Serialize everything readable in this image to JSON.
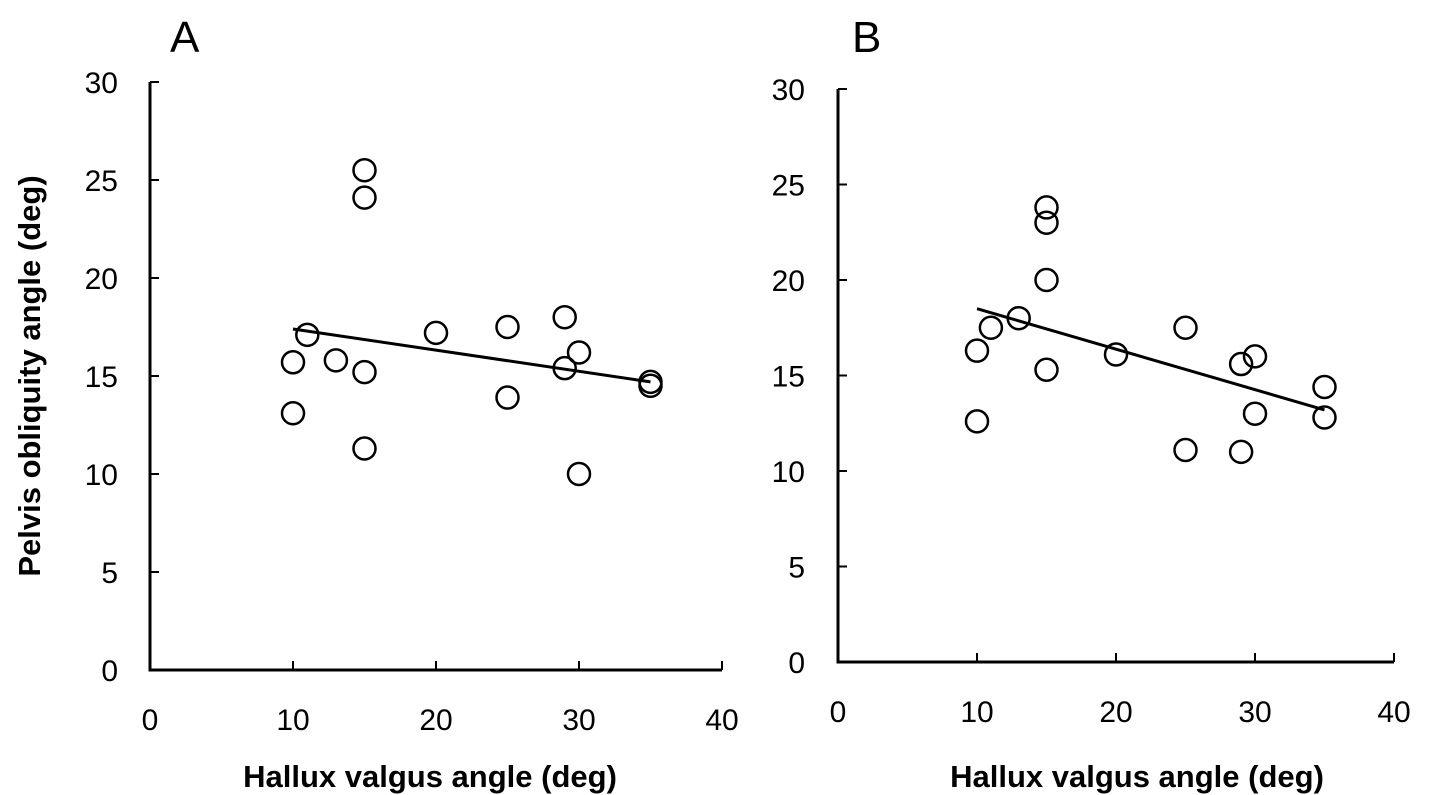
{
  "figure": {
    "ylabel": "Pelvis obliquity angle (deg)"
  },
  "colors": {
    "axis": "#000000",
    "marker_stroke": "#000000",
    "marker_fill": "#ffffff",
    "trendline": "#000000",
    "background": "#ffffff"
  },
  "chart_data": [
    {
      "type": "scatter",
      "panel_label": "A",
      "xlabel": "Hallux valgus angle (deg)",
      "ylabel": "Pelvis obliquity angle (deg)",
      "xlim": [
        0,
        40
      ],
      "ylim": [
        0,
        30
      ],
      "xticks": [
        "0",
        "10",
        "20",
        "30",
        "40"
      ],
      "yticks": [
        "0",
        "5",
        "10",
        "15",
        "20",
        "25",
        "30"
      ],
      "grid": false,
      "marker": "open-circle",
      "points": [
        {
          "x": 10,
          "y": 15.7
        },
        {
          "x": 10,
          "y": 13.1
        },
        {
          "x": 11,
          "y": 17.1
        },
        {
          "x": 13,
          "y": 15.8
        },
        {
          "x": 15,
          "y": 25.5
        },
        {
          "x": 15,
          "y": 24.1
        },
        {
          "x": 15,
          "y": 15.2
        },
        {
          "x": 15,
          "y": 11.3
        },
        {
          "x": 20,
          "y": 17.2
        },
        {
          "x": 25,
          "y": 17.5
        },
        {
          "x": 25,
          "y": 13.9
        },
        {
          "x": 29,
          "y": 18.0
        },
        {
          "x": 29,
          "y": 15.4
        },
        {
          "x": 30,
          "y": 16.2
        },
        {
          "x": 30,
          "y": 10.0
        },
        {
          "x": 35,
          "y": 14.7
        },
        {
          "x": 35,
          "y": 14.5
        }
      ],
      "trendline": {
        "x": [
          10,
          35
        ],
        "y": [
          17.4,
          14.7
        ]
      }
    },
    {
      "type": "scatter",
      "panel_label": "B",
      "xlabel": "Hallux valgus angle (deg)",
      "ylabel": "",
      "xlim": [
        0,
        40
      ],
      "ylim": [
        0,
        30
      ],
      "xticks": [
        "0",
        "10",
        "20",
        "30",
        "40"
      ],
      "yticks": [
        "0",
        "5",
        "10",
        "15",
        "20",
        "25",
        "30"
      ],
      "grid": false,
      "marker": "open-circle",
      "points": [
        {
          "x": 10,
          "y": 16.3
        },
        {
          "x": 10,
          "y": 12.6
        },
        {
          "x": 11,
          "y": 17.5
        },
        {
          "x": 13,
          "y": 18.0
        },
        {
          "x": 15,
          "y": 23.8
        },
        {
          "x": 15,
          "y": 23.0
        },
        {
          "x": 15,
          "y": 20.0
        },
        {
          "x": 15,
          "y": 15.3
        },
        {
          "x": 20,
          "y": 16.1
        },
        {
          "x": 25,
          "y": 17.5
        },
        {
          "x": 25,
          "y": 11.1
        },
        {
          "x": 29,
          "y": 15.6
        },
        {
          "x": 29,
          "y": 11.0
        },
        {
          "x": 30,
          "y": 16.0
        },
        {
          "x": 30,
          "y": 13.0
        },
        {
          "x": 35,
          "y": 14.4
        },
        {
          "x": 35,
          "y": 12.8
        }
      ],
      "trendline": {
        "x": [
          10,
          35
        ],
        "y": [
          18.5,
          13.2
        ]
      }
    }
  ]
}
